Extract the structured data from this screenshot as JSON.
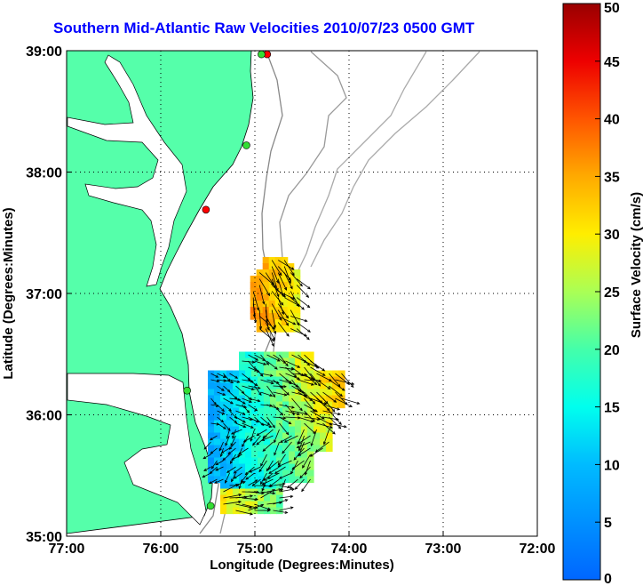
{
  "chart_data": {
    "type": "map",
    "title": "Southern Mid-Atlantic Raw Velocities 2010/07/23 0500 GMT",
    "xlabel": "Longitude (Degrees:Minutes)",
    "ylabel": "Latitude (Degrees:Minutes)",
    "x_ticks": [
      "77:00",
      "76:00",
      "75:00",
      "74:00",
      "73:00",
      "72:00"
    ],
    "y_ticks": [
      "39:00",
      "38:00",
      "37:00",
      "36:00",
      "35:00"
    ],
    "xlim": [
      -77,
      -72
    ],
    "ylim": [
      35,
      39
    ],
    "grid": true,
    "colorbar": {
      "label": "Surface Velocity (cm/s)",
      "range": [
        0,
        50
      ],
      "ticks": [
        "0",
        "5",
        "10",
        "15",
        "20",
        "25",
        "30",
        "35",
        "40",
        "45",
        "50"
      ]
    },
    "stations": [
      {
        "lon": -74.87,
        "lat": 38.97,
        "color": "#ff0000"
      },
      {
        "lon": -74.93,
        "lat": 38.97,
        "color": "#33dd33"
      },
      {
        "lon": -75.09,
        "lat": 38.22,
        "color": "#33dd33"
      },
      {
        "lon": -75.52,
        "lat": 37.69,
        "color": "#ff0000"
      },
      {
        "lon": -75.72,
        "lat": 36.2,
        "color": "#33dd33"
      },
      {
        "lon": -75.47,
        "lat": 35.25,
        "color": "#33dd33"
      }
    ],
    "velocity_field_north": {
      "lon_range": [
        -75.05,
        -74.55
      ],
      "lat_range": [
        36.72,
        37.3
      ],
      "speed_range": [
        18,
        40
      ],
      "dominant_speed": 35
    },
    "velocity_field_south": {
      "lon_range": [
        -75.5,
        -74.08
      ],
      "lat_range": [
        35.22,
        36.52
      ],
      "speed_range": [
        5,
        38
      ],
      "dominant_speed": 20
    }
  }
}
